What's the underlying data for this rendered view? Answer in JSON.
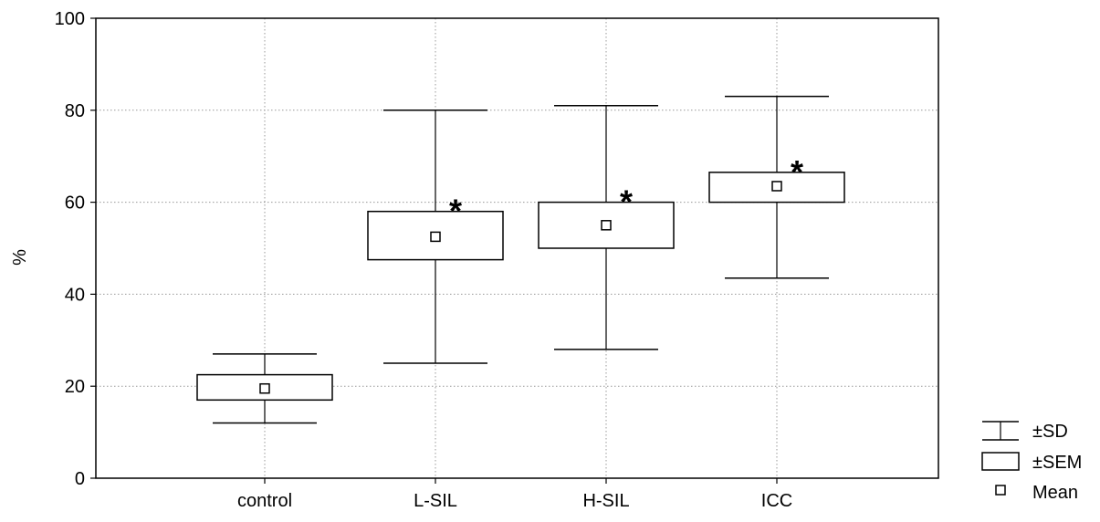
{
  "chart_data": {
    "type": "box",
    "ylabel": "%",
    "ylim": [
      0,
      100
    ],
    "yticks": [
      "0",
      "20",
      "40",
      "60",
      "80",
      "100"
    ],
    "grid": true,
    "categories": [
      "control",
      "L-SIL",
      "H-SIL",
      "ICC"
    ],
    "mean": [
      19.5,
      52.5,
      55,
      63.5
    ],
    "sem": [
      [
        17,
        22.5
      ],
      [
        47.5,
        58
      ],
      [
        50,
        60
      ],
      [
        60,
        66.5
      ]
    ],
    "sd": [
      [
        12,
        27
      ],
      [
        25,
        80
      ],
      [
        28,
        81
      ],
      [
        43.5,
        83
      ]
    ],
    "significance_markers": [
      "",
      "*",
      "*",
      "*"
    ],
    "legend": {
      "position": "bottom-right",
      "items": [
        "±SD",
        "±SEM",
        "Mean"
      ]
    }
  }
}
